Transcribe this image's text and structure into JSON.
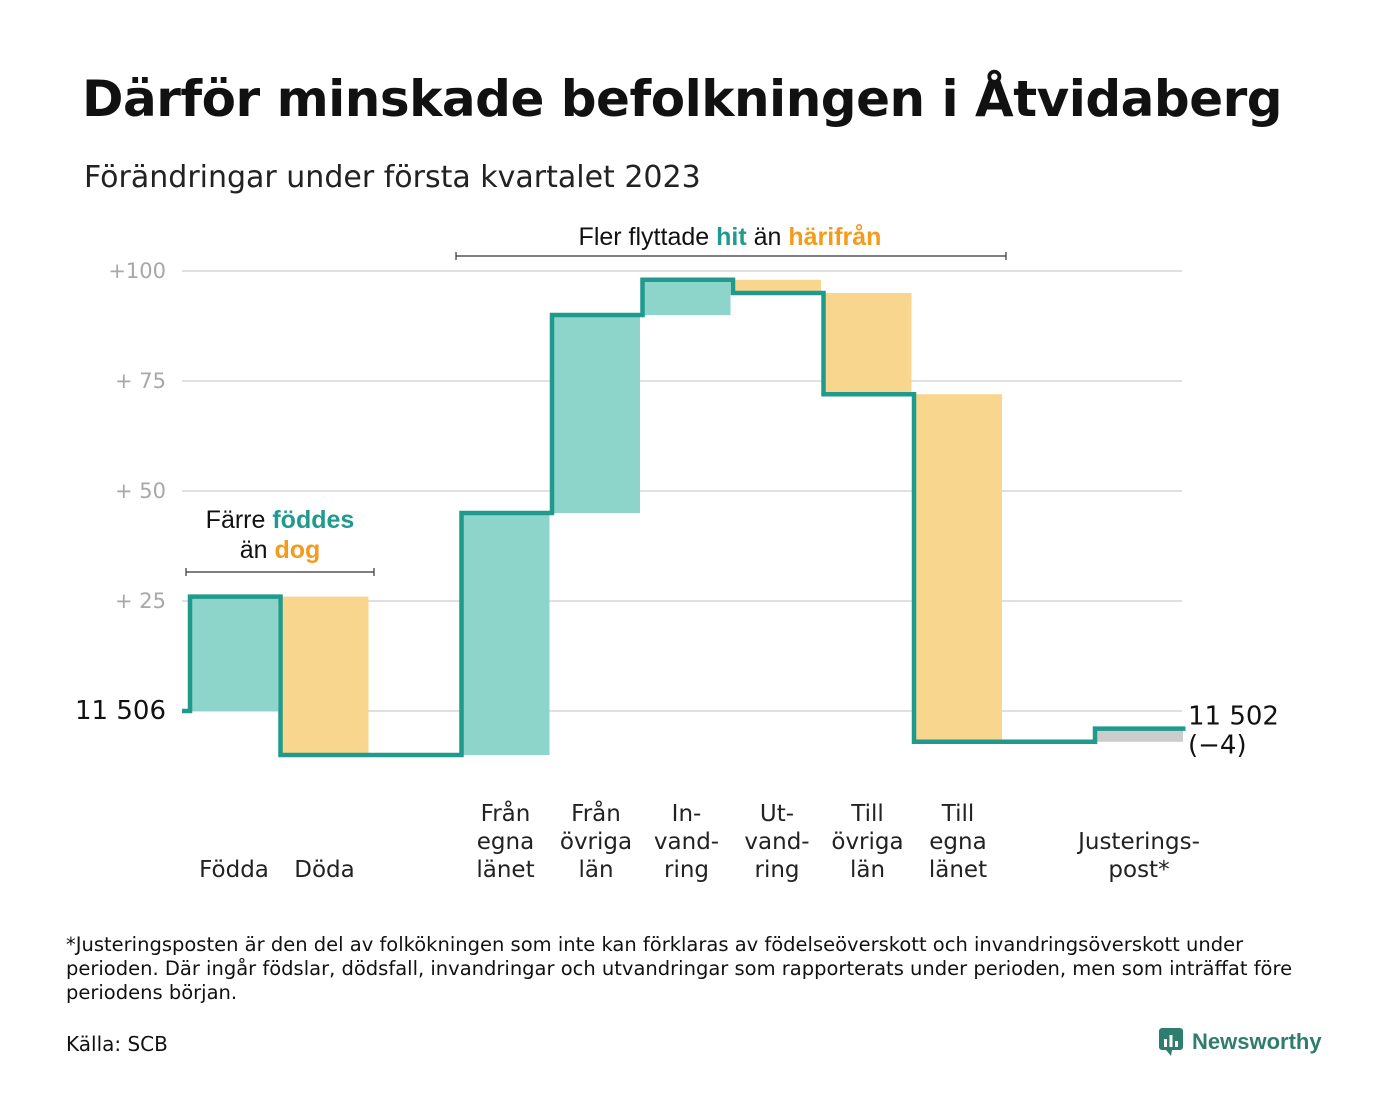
{
  "title": "Därför minskade befolkningen i Åtvidaberg",
  "subtitle": "Förändringar under första kvartalet 2023",
  "footnote": "*Justeringsposten är den del av folkökningen som inte kan förklaras av födelseöverskott och invandringsöverskott under perioden. Där ingår födslar, dödsfall, invandringar och utvandringar som rapporterats under perioden, men som inträffat före periodens början.",
  "source": "Källa: SCB",
  "brand": "Newsworthy",
  "colors": {
    "increase": "#8dd4cb",
    "decrease": "#f9d68d",
    "line": "#1f9a8c",
    "adjustment": "#cccccc",
    "grid": "#e0e0e0"
  },
  "annotations": {
    "births_deaths": {
      "prefix": "Färre ",
      "hl1": "föddes",
      "line2_prefix": "än ",
      "hl2": "dog"
    },
    "migration": {
      "prefix": "Fler flyttade ",
      "hl1": "hit",
      "middle": " än ",
      "hl2": "härifrån"
    }
  },
  "chart_data": {
    "type": "waterfall",
    "title": "Därför minskade befolkningen i Åtvidaberg",
    "subtitle": "Förändringar under första kvartalet 2023",
    "start": {
      "label": "11 506",
      "value": 11506
    },
    "end": {
      "label": "11 502",
      "change_label": "(−4)",
      "value": 11502
    },
    "y_tick_labels": [
      "+100",
      "+ 75",
      "+ 50",
      "+ 25"
    ],
    "y_ticks": [
      100,
      75,
      50,
      25
    ],
    "ylim": [
      -15,
      100
    ],
    "grid": true,
    "steps": [
      {
        "category": [
          "Födda"
        ],
        "change": 26,
        "kind": "increase"
      },
      {
        "category": [
          "Döda"
        ],
        "change": -36,
        "kind": "decrease"
      },
      {
        "category": [],
        "change": 0,
        "kind": "spacer"
      },
      {
        "category": [
          "Från",
          "egna",
          "länet"
        ],
        "change": 55,
        "kind": "increase"
      },
      {
        "category": [
          "Från",
          "övriga",
          "län"
        ],
        "change": 45,
        "kind": "increase"
      },
      {
        "category": [
          "In-",
          "vand-",
          "ring"
        ],
        "change": 8,
        "kind": "increase"
      },
      {
        "category": [
          "Ut-",
          "vand-",
          "ring"
        ],
        "change": -3,
        "kind": "decrease"
      },
      {
        "category": [
          "Till",
          "övriga",
          "län"
        ],
        "change": -23,
        "kind": "decrease"
      },
      {
        "category": [
          "Till",
          "egna",
          "länet"
        ],
        "change": -79,
        "kind": "decrease"
      },
      {
        "category": [],
        "change": 0,
        "kind": "spacer"
      },
      {
        "category": [
          "Justerings-",
          "post*"
        ],
        "change": 3,
        "kind": "adjustment"
      }
    ]
  }
}
